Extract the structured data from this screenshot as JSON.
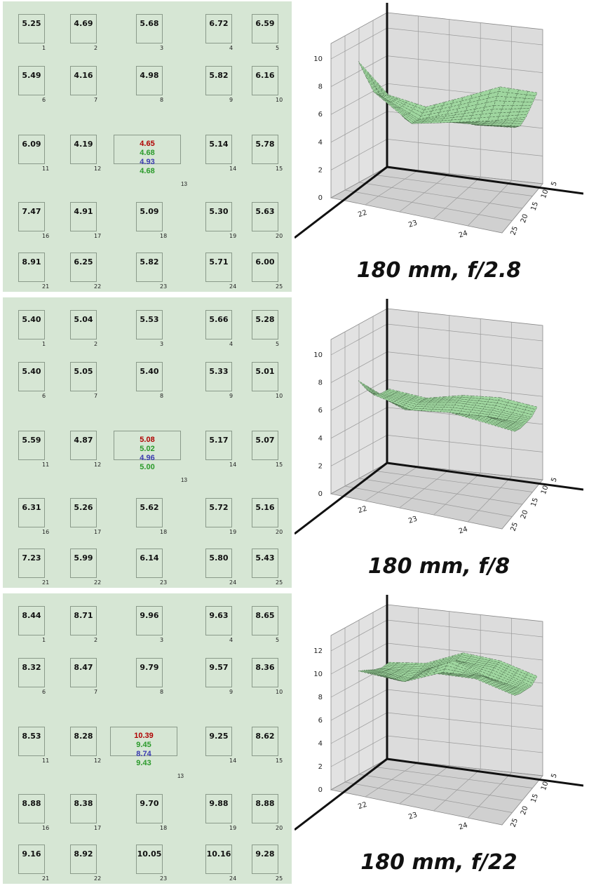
{
  "colors": {
    "panel_bg": "#d6e6d4",
    "surface": "#9fd69f",
    "grid_wall": "#dcdcdc",
    "val_red": "#b00000",
    "val_green": "#2a9a2a",
    "val_blue": "#3a3ab0"
  },
  "panels": [
    {
      "caption": "180 mm, f/2.8",
      "cells": [
        "5.25",
        "4.69",
        "5.68",
        "6.72",
        "6.59",
        "5.49",
        "4.16",
        "4.98",
        "5.82",
        "6.16",
        "6.09",
        "4.19",
        "",
        "5.14",
        "5.78",
        "7.47",
        "4.91",
        "5.09",
        "5.30",
        "5.63",
        "8.91",
        "6.25",
        "5.82",
        "5.71",
        "6.00"
      ],
      "center": [
        "4.65",
        "4.68",
        "4.93",
        "4.68"
      ],
      "indices": [
        "1",
        "2",
        "3",
        "4",
        "5",
        "6",
        "7",
        "8",
        "9",
        "10",
        "11",
        "12",
        "13",
        "14",
        "15",
        "16",
        "17",
        "18",
        "19",
        "20",
        "21",
        "22",
        "23",
        "24",
        "25"
      ]
    },
    {
      "caption": "180 mm, f/8",
      "cells": [
        "5.40",
        "5.04",
        "5.53",
        "5.66",
        "5.28",
        "5.40",
        "5.05",
        "5.40",
        "5.33",
        "5.01",
        "5.59",
        "4.87",
        "",
        "5.17",
        "5.07",
        "6.31",
        "5.26",
        "5.62",
        "5.72",
        "5.16",
        "7.23",
        "5.99",
        "6.14",
        "5.80",
        "5.43"
      ],
      "center": [
        "5.08",
        "5.02",
        "4.96",
        "5.00"
      ],
      "indices": [
        "1",
        "2",
        "3",
        "4",
        "5",
        "6",
        "7",
        "8",
        "9",
        "10",
        "11",
        "12",
        "13",
        "14",
        "15",
        "16",
        "17",
        "18",
        "19",
        "20",
        "21",
        "22",
        "23",
        "24",
        "25"
      ]
    },
    {
      "caption": "180 mm, f/22",
      "cells": [
        "8.44",
        "8.71",
        "9.96",
        "9.63",
        "8.65",
        "8.32",
        "8.47",
        "9.79",
        "9.57",
        "8.36",
        "8.53",
        "8.28",
        "",
        "9.25",
        "8.62",
        "8.88",
        "8.38",
        "9.70",
        "9.88",
        "8.88",
        "9.16",
        "8.92",
        "10.05",
        "10.16",
        "9.28"
      ],
      "center": [
        "10.39",
        "9.45",
        "8.74",
        "9.43"
      ],
      "indices": [
        "1",
        "2",
        "3",
        "4",
        "5",
        "6",
        "7",
        "8",
        "9",
        "10",
        "11",
        "12",
        "13",
        "14",
        "15",
        "16",
        "17",
        "18",
        "19",
        "20",
        "21",
        "22",
        "23",
        "24",
        "25"
      ]
    }
  ],
  "chart_data": [
    {
      "type": "surface",
      "grid": [
        [
          5.25,
          4.69,
          5.68,
          6.72,
          6.59
        ],
        [
          5.49,
          4.16,
          4.98,
          5.82,
          6.16
        ],
        [
          6.09,
          4.19,
          4.65,
          5.14,
          5.78
        ],
        [
          7.47,
          4.91,
          5.09,
          5.3,
          5.63
        ],
        [
          8.91,
          6.25,
          5.82,
          5.71,
          6.0
        ]
      ],
      "z_ticks": [
        "0",
        "2",
        "4",
        "6",
        "8",
        "10"
      ],
      "x_ticks": [
        "22",
        "23",
        "24"
      ],
      "y_ticks": [
        "5",
        "10",
        "15",
        "20",
        "25"
      ]
    },
    {
      "type": "surface",
      "grid": [
        [
          5.4,
          5.04,
          5.53,
          5.66,
          5.28
        ],
        [
          5.4,
          5.05,
          5.4,
          5.33,
          5.01
        ],
        [
          5.59,
          4.87,
          5.08,
          5.17,
          5.07
        ],
        [
          6.31,
          5.26,
          5.62,
          5.72,
          5.16
        ],
        [
          7.23,
          5.99,
          6.14,
          5.8,
          5.43
        ]
      ],
      "z_ticks": [
        "0",
        "2",
        "4",
        "6",
        "8",
        "10"
      ],
      "x_ticks": [
        "22",
        "23",
        "24"
      ],
      "y_ticks": [
        "5",
        "10",
        "15",
        "20",
        "25"
      ]
    },
    {
      "type": "surface",
      "grid": [
        [
          8.44,
          8.71,
          9.96,
          9.63,
          8.65
        ],
        [
          8.32,
          8.47,
          9.79,
          9.57,
          8.36
        ],
        [
          8.53,
          8.28,
          10.39,
          9.25,
          8.62
        ],
        [
          8.88,
          8.38,
          9.7,
          9.88,
          8.88
        ],
        [
          9.16,
          8.92,
          10.05,
          10.16,
          9.28
        ]
      ],
      "z_ticks": [
        "0",
        "2",
        "4",
        "6",
        "8",
        "10",
        "12"
      ],
      "x_ticks": [
        "22",
        "23",
        "24"
      ],
      "y_ticks": [
        "5",
        "10",
        "15",
        "20",
        "25"
      ]
    }
  ]
}
